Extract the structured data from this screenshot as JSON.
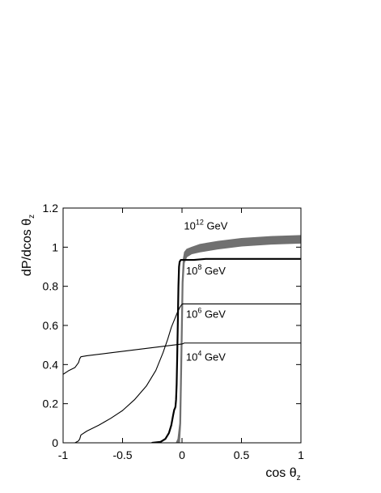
{
  "chart_data": {
    "type": "line",
    "title": "",
    "xlabel": {
      "text": "cos θ",
      "sub": "z"
    },
    "ylabel": {
      "text": "dP/dcos θ",
      "sub": "z"
    },
    "xlim": [
      -1,
      1
    ],
    "ylim": [
      0,
      1.2
    ],
    "xticks": [
      -1,
      -0.5,
      0,
      0.5,
      1
    ],
    "xtick_labels": [
      "-1",
      "-0.5",
      "0",
      "0.5",
      "1"
    ],
    "yticks": [
      0,
      0.2,
      0.4,
      0.6,
      0.8,
      1,
      1.2
    ],
    "ytick_labels": [
      "0",
      "0.2",
      "0.4",
      "0.6",
      "0.8",
      "1",
      "1.2"
    ],
    "grid": false,
    "legend": "none",
    "series": [
      {
        "label": {
          "base": "10",
          "exp": "12",
          "unit": "GeV"
        },
        "label_at": [
          0.2,
          1.09
        ],
        "style": "band",
        "color": "#707070",
        "x": [
          -0.05,
          -0.035,
          -0.02,
          -0.01,
          0.0,
          0.01,
          0.02,
          0.04,
          0.08,
          0.15,
          0.3,
          0.5,
          0.75,
          1.0
        ],
        "lower": [
          0.0,
          0.0,
          0.0,
          0.1,
          0.45,
          0.82,
          0.92,
          0.95,
          0.965,
          0.975,
          0.99,
          1.005,
          1.015,
          1.02
        ],
        "upper": [
          0.0,
          0.02,
          0.1,
          0.45,
          0.82,
          0.94,
          0.975,
          0.99,
          1.0,
          1.015,
          1.03,
          1.045,
          1.055,
          1.06
        ]
      },
      {
        "label": {
          "base": "10",
          "exp": "8",
          "unit": "GeV"
        },
        "label_at": [
          0.2,
          0.86
        ],
        "style": "line",
        "stroke_width": 2.2,
        "color": "#000000",
        "x": [
          -0.25,
          -0.18,
          -0.14,
          -0.11,
          -0.09,
          -0.075,
          -0.065,
          -0.06,
          -0.055,
          -0.05,
          -0.045,
          -0.04,
          -0.035,
          -0.03,
          -0.025,
          -0.02,
          -0.01,
          0.0,
          0.05,
          0.1,
          0.2,
          0.5,
          1.0
        ],
        "y": [
          0.0,
          0.005,
          0.02,
          0.05,
          0.09,
          0.14,
          0.17,
          0.175,
          0.185,
          0.22,
          0.3,
          0.45,
          0.62,
          0.8,
          0.9,
          0.925,
          0.935,
          0.935,
          0.935,
          0.935,
          0.94,
          0.94,
          0.94
        ]
      },
      {
        "label": {
          "base": "10",
          "exp": "6",
          "unit": "GeV"
        },
        "label_at": [
          0.2,
          0.64
        ],
        "style": "line",
        "stroke_width": 1.1,
        "color": "#000000",
        "x": [
          -0.9,
          -0.87,
          -0.86,
          -0.85,
          -0.8,
          -0.7,
          -0.6,
          -0.5,
          -0.4,
          -0.3,
          -0.22,
          -0.16,
          -0.12,
          -0.09,
          -0.06,
          -0.04,
          -0.02,
          -0.005,
          0.005,
          0.02,
          0.1,
          0.5,
          1.0
        ],
        "y": [
          0.0,
          0.01,
          0.02,
          0.04,
          0.06,
          0.09,
          0.125,
          0.165,
          0.22,
          0.29,
          0.37,
          0.46,
          0.53,
          0.59,
          0.635,
          0.665,
          0.69,
          0.705,
          0.71,
          0.71,
          0.71,
          0.71,
          0.71
        ]
      },
      {
        "label": {
          "base": "10",
          "exp": "4",
          "unit": "GeV"
        },
        "label_at": [
          0.2,
          0.42
        ],
        "style": "line",
        "stroke_width": 1.1,
        "color": "#000000",
        "x": [
          -1.0,
          -0.95,
          -0.9,
          -0.87,
          -0.86,
          -0.85,
          -0.8,
          -0.6,
          -0.4,
          -0.2,
          0.0,
          0.02,
          0.5,
          1.0
        ],
        "y": [
          0.35,
          0.37,
          0.385,
          0.41,
          0.43,
          0.44,
          0.445,
          0.46,
          0.475,
          0.49,
          0.505,
          0.51,
          0.51,
          0.51
        ]
      }
    ]
  }
}
